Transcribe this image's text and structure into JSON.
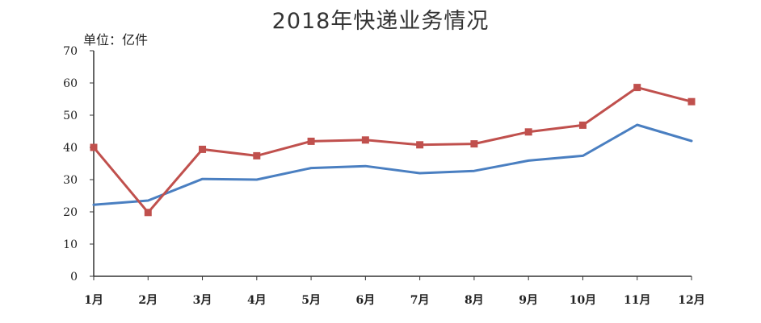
{
  "chart_data": {
    "type": "line",
    "title": "2018年快递业务情况",
    "unit_label": "单位：亿件",
    "categories": [
      "1月",
      "2月",
      "3月",
      "4月",
      "5月",
      "6月",
      "7月",
      "8月",
      "9月",
      "10月",
      "11月",
      "12月"
    ],
    "ylim": [
      0,
      70
    ],
    "yticks": [
      0,
      10,
      20,
      30,
      40,
      50,
      60,
      70
    ],
    "grid": false,
    "legend": "none",
    "series": [
      {
        "color": "#4a7fc1",
        "marker": "none",
        "values": [
          22.2,
          23.5,
          30.2,
          30.0,
          33.6,
          34.2,
          32.0,
          32.7,
          35.9,
          37.4,
          47.0,
          42.0
        ]
      },
      {
        "color": "#c0504d",
        "marker": "square",
        "values": [
          40.0,
          19.8,
          39.4,
          37.4,
          41.9,
          42.3,
          40.8,
          41.1,
          44.8,
          46.9,
          58.6,
          54.2
        ]
      }
    ]
  }
}
